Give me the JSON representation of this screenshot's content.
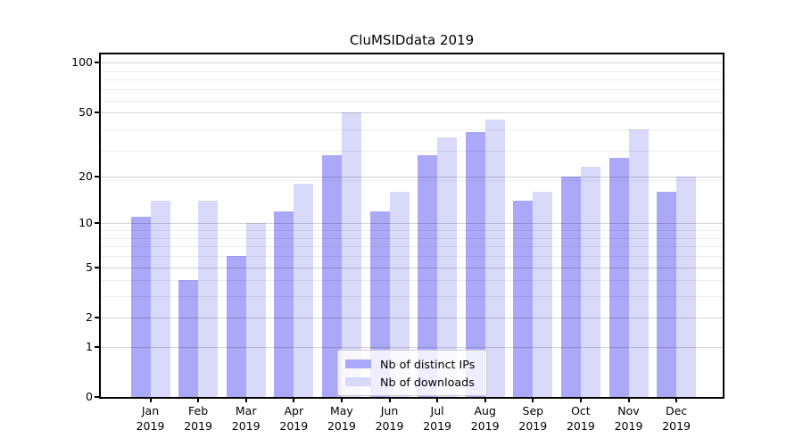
{
  "chart_data": {
    "type": "bar",
    "title": "CluMSIDdata 2019",
    "x_month_labels": [
      "Jan",
      "Feb",
      "Mar",
      "Apr",
      "May",
      "Jun",
      "Jul",
      "Aug",
      "Sep",
      "Oct",
      "Nov",
      "Dec"
    ],
    "x_year_label": "2019",
    "series": [
      {
        "name": "Nb of distinct IPs",
        "color": "#a9a9f7",
        "values": [
          11,
          4,
          6,
          12,
          27,
          12,
          27,
          38,
          14,
          20,
          26,
          16
        ]
      },
      {
        "name": "Nb of downloads",
        "color": "#d9d9f9",
        "values": [
          14,
          14,
          10,
          18,
          50,
          16,
          35,
          45,
          16,
          23,
          39,
          20
        ]
      }
    ],
    "y_axis": {
      "scale": "log1p",
      "tick_values": [
        0,
        1,
        2,
        5,
        10,
        20,
        50,
        100
      ],
      "tick_labels": [
        "0",
        "1",
        "2",
        "5",
        "10",
        "20",
        "50",
        "100"
      ],
      "minor_gridline_values": [
        3,
        4,
        6,
        7,
        8,
        9,
        19,
        29,
        39,
        59,
        69,
        79,
        89
      ],
      "ylim": [
        0,
        112
      ]
    },
    "grid": true,
    "legend_position": "lower center"
  }
}
